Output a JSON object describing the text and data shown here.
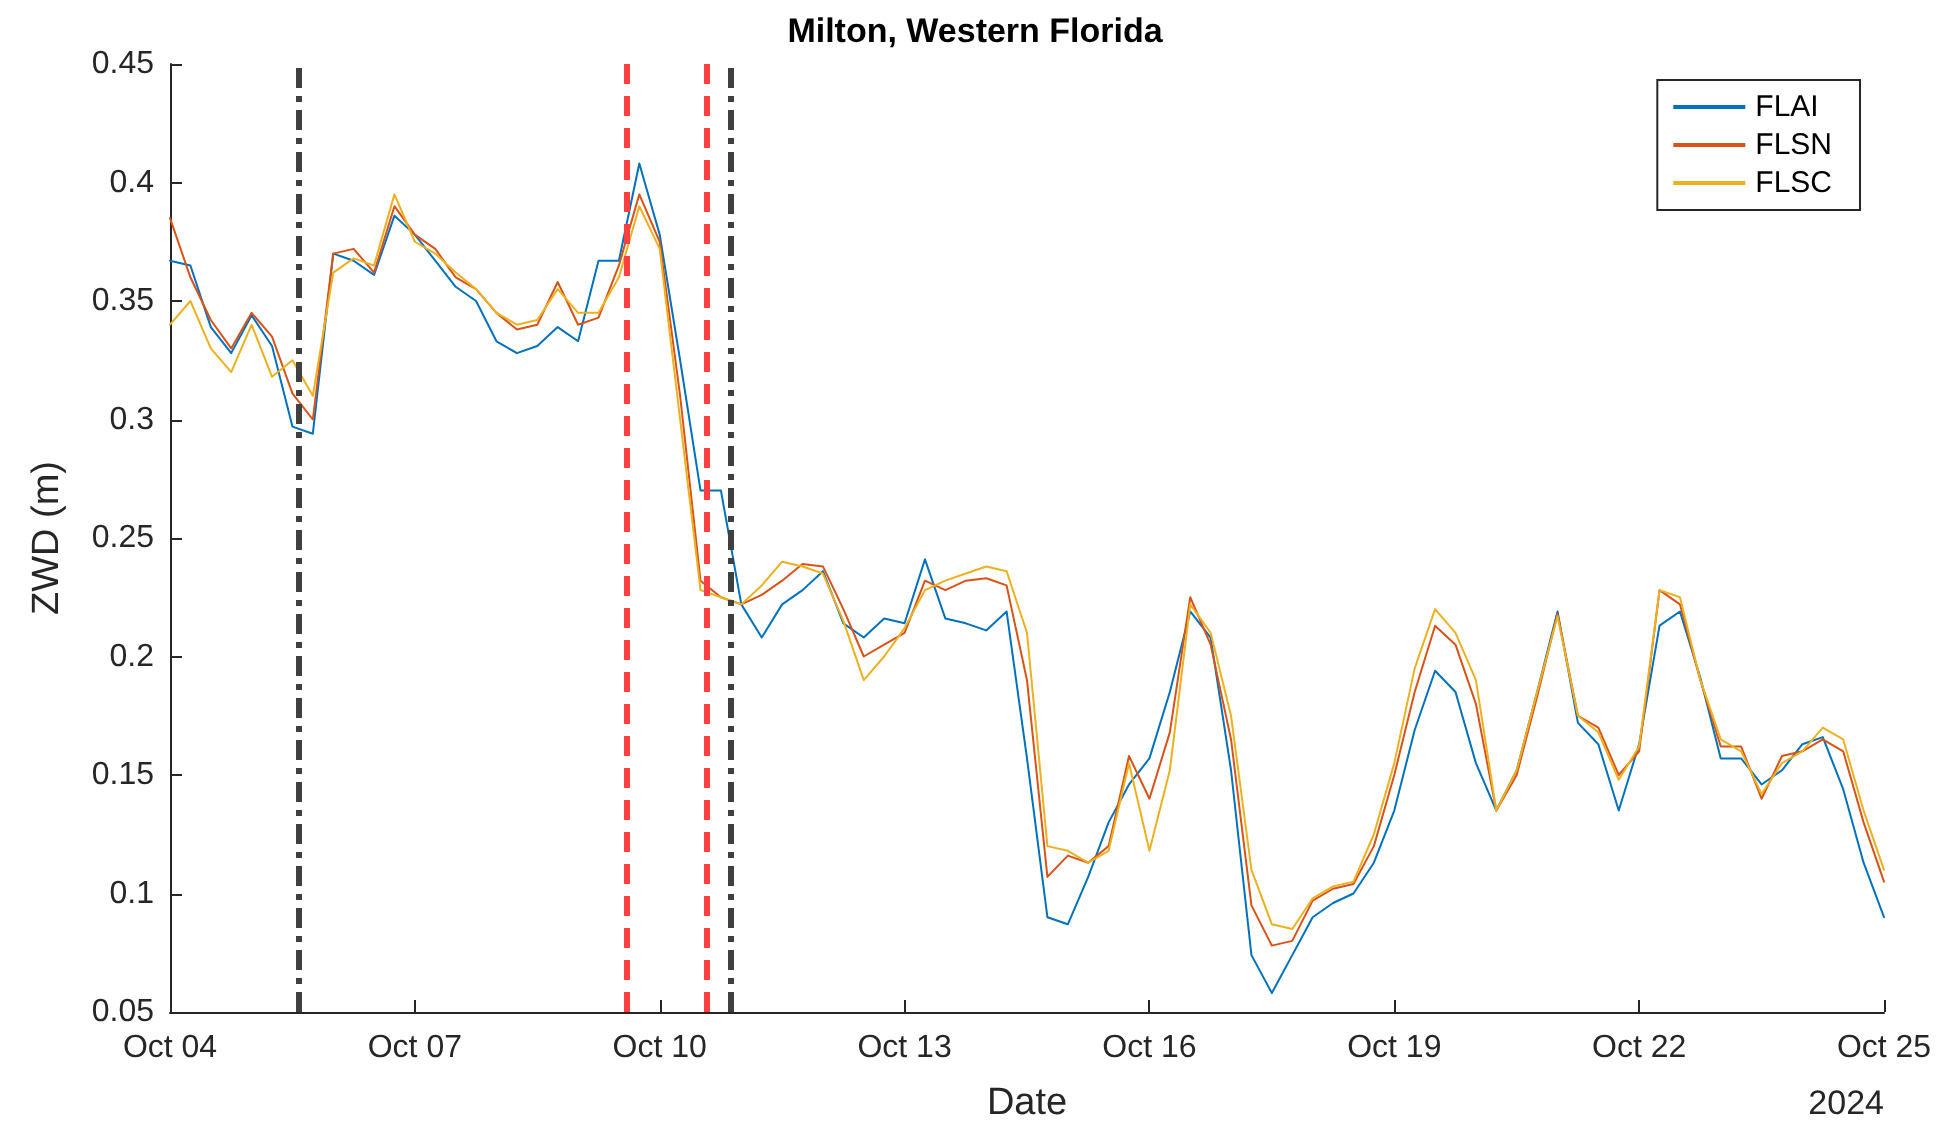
{
  "chart_data": {
    "type": "line",
    "title": "Milton, Western Florida",
    "xlabel": "Date",
    "ylabel": "ZWD (m)",
    "annotations": [
      "2024"
    ],
    "x": [
      "2024-10-04T00:00",
      "2024-10-04T06:00",
      "2024-10-04T12:00",
      "2024-10-04T18:00",
      "2024-10-05T00:00",
      "2024-10-05T06:00",
      "2024-10-05T12:00",
      "2024-10-05T18:00",
      "2024-10-06T00:00",
      "2024-10-06T06:00",
      "2024-10-06T12:00",
      "2024-10-06T18:00",
      "2024-10-07T00:00",
      "2024-10-07T06:00",
      "2024-10-07T12:00",
      "2024-10-07T18:00",
      "2024-10-08T00:00",
      "2024-10-08T06:00",
      "2024-10-08T12:00",
      "2024-10-08T18:00",
      "2024-10-09T00:00",
      "2024-10-09T06:00",
      "2024-10-09T12:00",
      "2024-10-09T18:00",
      "2024-10-10T00:00",
      "2024-10-10T06:00",
      "2024-10-10T12:00",
      "2024-10-10T18:00",
      "2024-10-11T00:00",
      "2024-10-11T06:00",
      "2024-10-11T12:00",
      "2024-10-11T18:00",
      "2024-10-12T00:00",
      "2024-10-12T06:00",
      "2024-10-12T12:00",
      "2024-10-12T18:00",
      "2024-10-13T00:00",
      "2024-10-13T06:00",
      "2024-10-13T12:00",
      "2024-10-13T18:00",
      "2024-10-14T00:00",
      "2024-10-14T06:00",
      "2024-10-14T12:00",
      "2024-10-14T18:00",
      "2024-10-15T00:00",
      "2024-10-15T06:00",
      "2024-10-15T12:00",
      "2024-10-15T18:00",
      "2024-10-16T00:00",
      "2024-10-16T06:00",
      "2024-10-16T12:00",
      "2024-10-16T18:00",
      "2024-10-17T00:00",
      "2024-10-17T06:00",
      "2024-10-17T12:00",
      "2024-10-17T18:00",
      "2024-10-18T00:00",
      "2024-10-18T06:00",
      "2024-10-18T12:00",
      "2024-10-18T18:00",
      "2024-10-19T00:00",
      "2024-10-19T06:00",
      "2024-10-19T12:00",
      "2024-10-19T18:00",
      "2024-10-20T00:00",
      "2024-10-20T06:00",
      "2024-10-20T12:00",
      "2024-10-20T18:00",
      "2024-10-21T00:00",
      "2024-10-21T06:00",
      "2024-10-21T12:00",
      "2024-10-21T18:00",
      "2024-10-22T00:00",
      "2024-10-22T06:00",
      "2024-10-22T12:00",
      "2024-10-22T18:00",
      "2024-10-23T00:00",
      "2024-10-23T06:00",
      "2024-10-23T12:00",
      "2024-10-23T18:00",
      "2024-10-24T00:00",
      "2024-10-24T06:00",
      "2024-10-24T12:00",
      "2024-10-24T18:00",
      "2024-10-25T00:00"
    ],
    "series": [
      {
        "name": "FLAI",
        "color": "#0072bd",
        "values": [
          0.367,
          0.365,
          0.339,
          0.328,
          0.344,
          0.331,
          0.297,
          0.294,
          0.37,
          0.367,
          0.361,
          0.386,
          0.378,
          0.367,
          0.356,
          0.35,
          0.333,
          0.328,
          0.331,
          0.339,
          0.333,
          0.367,
          0.367,
          0.408,
          0.378,
          0.325,
          0.27,
          0.27,
          0.222,
          0.208,
          0.222,
          0.228,
          0.236,
          0.214,
          0.208,
          0.216,
          0.214,
          0.241,
          0.216,
          0.214,
          0.211,
          0.219,
          0.157,
          0.09,
          0.087,
          0.107,
          0.13,
          0.146,
          0.157,
          0.185,
          0.219,
          0.208,
          0.152,
          0.074,
          0.058,
          0.074,
          0.09,
          0.096,
          0.1,
          0.113,
          0.135,
          0.169,
          0.194,
          0.185,
          0.155,
          0.135,
          0.152,
          0.185,
          0.219,
          0.172,
          0.163,
          0.135,
          0.163,
          0.213,
          0.219,
          0.191,
          0.157,
          0.157,
          0.146,
          0.152,
          0.163,
          0.166,
          0.144,
          0.113,
          0.09
        ]
      },
      {
        "name": "FLSN",
        "color": "#d95319",
        "values": [
          0.385,
          0.36,
          0.342,
          0.33,
          0.345,
          0.335,
          0.311,
          0.3,
          0.37,
          0.372,
          0.362,
          0.39,
          0.378,
          0.372,
          0.36,
          0.355,
          0.345,
          0.338,
          0.34,
          0.358,
          0.34,
          0.343,
          0.365,
          0.395,
          0.375,
          0.31,
          0.232,
          0.225,
          0.222,
          0.226,
          0.232,
          0.239,
          0.238,
          0.22,
          0.2,
          0.205,
          0.21,
          0.232,
          0.228,
          0.232,
          0.233,
          0.23,
          0.19,
          0.107,
          0.116,
          0.113,
          0.12,
          0.158,
          0.14,
          0.168,
          0.225,
          0.205,
          0.165,
          0.095,
          0.078,
          0.08,
          0.097,
          0.102,
          0.104,
          0.12,
          0.15,
          0.185,
          0.213,
          0.205,
          0.18,
          0.135,
          0.15,
          0.183,
          0.218,
          0.175,
          0.17,
          0.15,
          0.16,
          0.228,
          0.222,
          0.19,
          0.162,
          0.162,
          0.14,
          0.158,
          0.16,
          0.165,
          0.16,
          0.13,
          0.105
        ]
      },
      {
        "name": "FLSC",
        "color": "#edb120",
        "values": [
          0.34,
          0.35,
          0.33,
          0.32,
          0.34,
          0.318,
          0.325,
          0.31,
          0.362,
          0.368,
          0.365,
          0.395,
          0.375,
          0.37,
          0.362,
          0.355,
          0.345,
          0.34,
          0.342,
          0.355,
          0.345,
          0.345,
          0.36,
          0.39,
          0.372,
          0.3,
          0.228,
          0.225,
          0.222,
          0.23,
          0.24,
          0.238,
          0.235,
          0.215,
          0.19,
          0.2,
          0.212,
          0.228,
          0.232,
          0.235,
          0.238,
          0.236,
          0.21,
          0.12,
          0.118,
          0.113,
          0.118,
          0.155,
          0.118,
          0.152,
          0.222,
          0.21,
          0.175,
          0.11,
          0.087,
          0.085,
          0.098,
          0.103,
          0.105,
          0.125,
          0.155,
          0.195,
          0.22,
          0.21,
          0.19,
          0.135,
          0.152,
          0.185,
          0.217,
          0.175,
          0.168,
          0.148,
          0.162,
          0.228,
          0.225,
          0.19,
          0.165,
          0.16,
          0.142,
          0.155,
          0.16,
          0.17,
          0.165,
          0.135,
          0.11
        ]
      }
    ],
    "xlim": [
      "2024-10-04",
      "2024-10-25"
    ],
    "xticks": [
      {
        "value": "2024-10-04",
        "label": "Oct 04"
      },
      {
        "value": "2024-10-07",
        "label": "Oct 07"
      },
      {
        "value": "2024-10-10",
        "label": "Oct 10"
      },
      {
        "value": "2024-10-13",
        "label": "Oct 13"
      },
      {
        "value": "2024-10-16",
        "label": "Oct 16"
      },
      {
        "value": "2024-10-19",
        "label": "Oct 19"
      },
      {
        "value": "2024-10-22",
        "label": "Oct 22"
      },
      {
        "value": "2024-10-25",
        "label": "Oct 25"
      }
    ],
    "ylim": [
      0.05,
      0.45
    ],
    "yticks": [
      0.05,
      0.1,
      0.15,
      0.2,
      0.25,
      0.3,
      0.35,
      0.4,
      0.45
    ],
    "ref_lines": [
      {
        "axis": "x",
        "value": "2024-10-05T14:00",
        "color": "#404040",
        "line_style": "dashdot"
      },
      {
        "axis": "x",
        "value": "2024-10-09T14:00",
        "color": "#ff4040",
        "line_style": "dashed"
      },
      {
        "axis": "x",
        "value": "2024-10-10T13:30",
        "color": "#ff4040",
        "line_style": "dashed"
      },
      {
        "axis": "x",
        "value": "2024-10-10T21:00",
        "color": "#404040",
        "line_style": "dashdot"
      }
    ],
    "grid": false,
    "legend": "top right",
    "marker": "none",
    "line_style": "solid"
  }
}
